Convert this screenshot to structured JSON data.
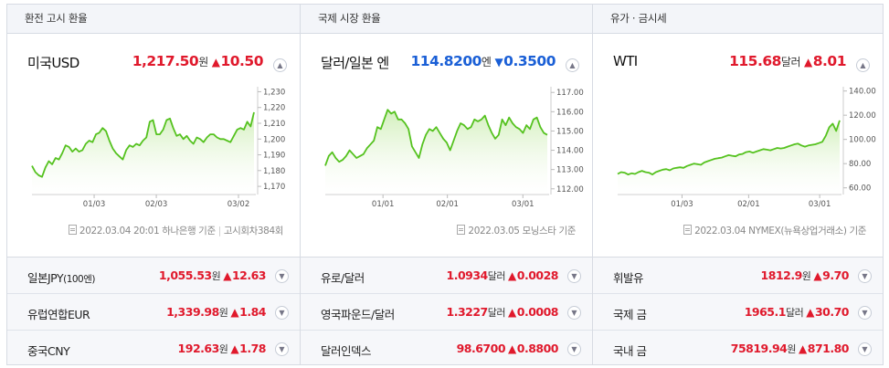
{
  "panels": [
    {
      "tab": "환전 고시 환율",
      "main": {
        "name": "미국USD",
        "price": "1,217.50",
        "unit": "원",
        "dir": "up",
        "change": "10.50",
        "change_color": "#e0192c"
      },
      "source": {
        "date": "2022.03.04 20:01",
        "provider": "하나은행 기준",
        "extra": "고시회차384회"
      },
      "list": [
        {
          "name": "일본JPY",
          "sub": "(100엔)",
          "price": "1,055.53",
          "unit": "원",
          "dir": "up",
          "change": "12.63"
        },
        {
          "name": "유럽연합EUR",
          "sub": "",
          "price": "1,339.98",
          "unit": "원",
          "dir": "up",
          "change": "1.84"
        },
        {
          "name": "중국CNY",
          "sub": "",
          "price": "192.63",
          "unit": "원",
          "dir": "up",
          "change": "1.78"
        }
      ]
    },
    {
      "tab": "국제 시장 환율",
      "main": {
        "name": "달러/일본 엔",
        "price": "114.8200",
        "unit": "엔",
        "dir": "down",
        "change": "0.3500",
        "change_color": "#1a5fd6"
      },
      "source": {
        "date": "2022.03.05",
        "provider": "모닝스타 기준",
        "extra": ""
      },
      "list": [
        {
          "name": "유로/달러",
          "sub": "",
          "price": "1.0934",
          "unit": "달러",
          "dir": "up",
          "change": "0.0028"
        },
        {
          "name": "영국파운드/달러",
          "sub": "",
          "price": "1.3227",
          "unit": "달러",
          "dir": "up",
          "change": "0.0008"
        },
        {
          "name": "달러인덱스",
          "sub": "",
          "price": "98.6700",
          "unit": "",
          "dir": "up",
          "change": "0.8800"
        }
      ]
    },
    {
      "tab": "유가 · 금시세",
      "main": {
        "name": "WTI",
        "price": "115.68",
        "unit": "달러",
        "dir": "up",
        "change": "8.01",
        "change_color": "#e0192c"
      },
      "source": {
        "date": "2022.03.04",
        "provider": "NYMEX(뉴욕상업거래소) 기준",
        "extra": ""
      },
      "list": [
        {
          "name": "휘발유",
          "sub": "",
          "price": "1812.9",
          "unit": "원",
          "dir": "up",
          "change": "9.70"
        },
        {
          "name": "국제 금",
          "sub": "",
          "price": "1965.1",
          "unit": "달러",
          "dir": "up",
          "change": "30.70"
        },
        {
          "name": "국내 금",
          "sub": "",
          "price": "75819.94",
          "unit": "원",
          "dir": "up",
          "change": "871.80"
        }
      ]
    }
  ],
  "icons": {
    "up": "▲",
    "down": "▼",
    "collapse": "chevron-up-icon",
    "expand": "chevron-down-icon",
    "source": "document-icon"
  },
  "colors": {
    "up": "#e0192c",
    "down": "#1a5fd6",
    "line": "#55c21f",
    "fill": "#e6f6d6"
  },
  "chart_data": [
    {
      "type": "area",
      "title": "미국USD",
      "x_ticks": [
        "01/03",
        "02/03",
        "03/02"
      ],
      "y_ticks": [
        1170,
        1180,
        1190,
        1200,
        1210,
        1220,
        1230
      ],
      "ylim": [
        1166,
        1232
      ],
      "values": [
        1183,
        1179,
        1177,
        1176,
        1182,
        1186,
        1184,
        1188,
        1187,
        1191,
        1196,
        1195,
        1192,
        1194,
        1192,
        1193,
        1197,
        1199,
        1198,
        1203,
        1204,
        1207,
        1205,
        1199,
        1194,
        1191,
        1189,
        1187,
        1193,
        1196,
        1195,
        1197,
        1196,
        1199,
        1201,
        1211,
        1212,
        1203,
        1203,
        1206,
        1212,
        1213,
        1207,
        1202,
        1203,
        1200,
        1202,
        1199,
        1197,
        1201,
        1200,
        1198,
        1201,
        1203,
        1203,
        1201,
        1200,
        1200,
        1199,
        1198,
        1202,
        1206,
        1207,
        1206,
        1211,
        1208,
        1217
      ]
    },
    {
      "type": "area",
      "title": "달러/일본 엔",
      "x_ticks": [
        "01/01",
        "02/01",
        "03/01"
      ],
      "y_ticks": [
        112,
        113,
        114,
        115,
        116,
        117
      ],
      "ylim": [
        111.8,
        117.2
      ],
      "values": [
        113.2,
        113.7,
        113.9,
        113.6,
        113.4,
        113.5,
        113.7,
        114.0,
        113.8,
        113.6,
        113.7,
        113.8,
        114.1,
        114.3,
        114.5,
        115.2,
        115.1,
        115.6,
        116.1,
        115.9,
        116.0,
        115.6,
        115.6,
        115.4,
        115.1,
        114.2,
        113.9,
        113.6,
        114.3,
        114.8,
        115.1,
        115.0,
        115.2,
        114.9,
        114.6,
        114.4,
        114.0,
        114.5,
        115.0,
        115.4,
        115.3,
        115.1,
        115.2,
        115.6,
        115.5,
        115.6,
        115.8,
        115.3,
        114.9,
        114.6,
        114.8,
        115.6,
        115.3,
        115.7,
        115.4,
        115.2,
        115.1,
        114.9,
        115.3,
        115.1,
        115.6,
        115.7,
        115.2,
        114.9,
        114.8
      ]
    },
    {
      "type": "area",
      "title": "WTI",
      "x_ticks": [
        "01/03",
        "02/01",
        "03/01"
      ],
      "y_ticks": [
        60,
        80,
        100,
        120,
        140
      ],
      "ylim": [
        56,
        142
      ],
      "values": [
        71.5,
        73,
        72.5,
        71,
        72,
        71.5,
        73,
        74,
        73,
        72.5,
        71,
        73,
        74,
        75,
        75.5,
        74.5,
        76,
        76.5,
        77,
        76.5,
        78,
        79,
        80,
        79.5,
        79,
        81,
        82,
        83,
        84,
        84.5,
        85,
        86,
        87,
        86.5,
        86,
        87.5,
        88,
        89.5,
        90,
        89,
        90,
        91,
        92,
        91.5,
        91,
        92,
        93,
        92.5,
        93,
        94,
        95,
        96,
        96.5,
        95,
        94,
        95,
        95.5,
        96,
        97,
        98,
        103,
        110,
        113,
        107,
        115.68
      ]
    }
  ]
}
